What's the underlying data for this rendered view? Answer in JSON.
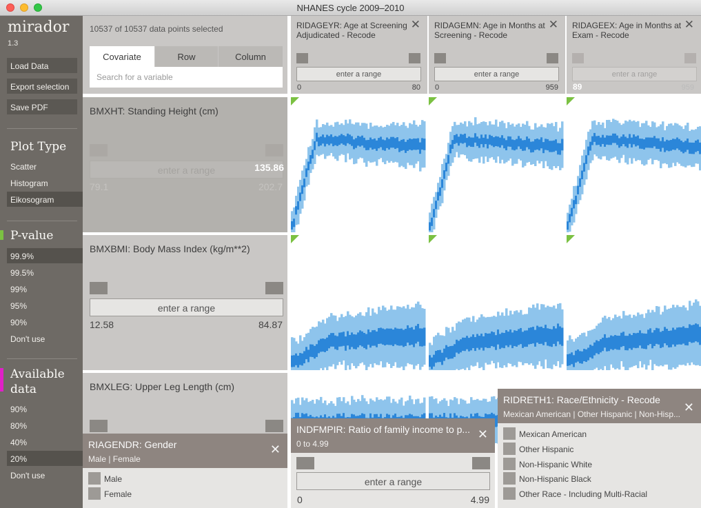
{
  "window": {
    "title": "NHANES cycle 2009–2010"
  },
  "app": {
    "name": "mirador",
    "version": "1.3"
  },
  "sidebar": {
    "buttons": [
      "Load Data",
      "Export selection",
      "Save PDF"
    ],
    "plot_type": {
      "heading": "Plot Type",
      "items": [
        "Scatter",
        "Histogram",
        "Eikosogram"
      ],
      "selected": 2
    },
    "pvalue": {
      "heading": "P-value",
      "items": [
        "99.9%",
        "99.5%",
        "99%",
        "95%",
        "90%",
        "Don't use"
      ],
      "selected": 0,
      "accent": "#7bc142"
    },
    "available": {
      "heading": "Available data",
      "items": [
        "90%",
        "80%",
        "40%",
        "20%",
        "Don't use"
      ],
      "selected": 3,
      "accent": "#e020c8"
    }
  },
  "controls": {
    "status": "10537 of 10537 data points selected",
    "tabs": [
      "Covariate",
      "Row",
      "Column"
    ],
    "active_tab": 0,
    "search_placeholder": "Search for a variable"
  },
  "columns": [
    {
      "title": "RIDAGEYR: Age at Screening Adjudicated - Recode",
      "range_label": "enter a range",
      "min": "0",
      "max": "80"
    },
    {
      "title": "RIDAGEMN: Age in Months at Screening - Recode",
      "range_label": "enter a range",
      "min": "0",
      "max": "959"
    },
    {
      "title": "RIDAGEEX: Age in Months at Exam - Recode",
      "range_label": "enter a range",
      "min": "89",
      "max": "959"
    }
  ],
  "rows": [
    {
      "title": "BMXHT: Standing Height (cm)",
      "range_label": "enter a range",
      "value": "135.86",
      "min": "79.1",
      "max": "202.7"
    },
    {
      "title": "BMXBMI: Body Mass Index (kg/m**2)",
      "range_label": "enter a range",
      "min": "12.58",
      "max": "84.87"
    },
    {
      "title": "BMXLEG: Upper Leg Length (cm)"
    }
  ],
  "popups": {
    "gender": {
      "title": "RIAGENDR: Gender",
      "subtitle": "Male | Female",
      "options": [
        "Male",
        "Female"
      ]
    },
    "income": {
      "title": "INDFMPIR: Ratio of family income to p...",
      "subtitle": "0 to 4.99",
      "range_label": "enter a range",
      "min": "0",
      "max": "4.99"
    },
    "race": {
      "title": "RIDRETH1: Race/Ethnicity - Recode",
      "subtitle": "Mexican American | Other Hispanic | Non-Hisp...",
      "options": [
        "Mexican American",
        "Other Hispanic",
        "Non-Hispanic White",
        "Non-Hispanic Black",
        "Other Race - Including Multi-Racial"
      ]
    }
  },
  "colors": {
    "dark_band": "#2b86d9",
    "light_band": "#8ec4ec",
    "significant": "#7bc142"
  }
}
